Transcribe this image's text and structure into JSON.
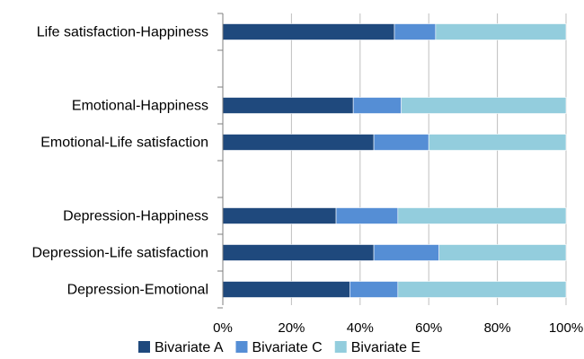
{
  "chart_data": {
    "type": "bar",
    "orientation": "horizontal",
    "stacked": "percent",
    "categories": [
      "Life satisfaction-Happiness",
      "",
      "Emotional-Happiness",
      "Emotional-Life satisfaction",
      "",
      "Depression-Happiness",
      "Depression-Life satisfaction",
      "Depression-Emotional"
    ],
    "series": [
      {
        "name": "Bivariate A",
        "values": [
          50,
          null,
          38,
          44,
          null,
          33,
          44,
          37
        ]
      },
      {
        "name": "Bivariate C",
        "values": [
          12,
          null,
          14,
          16,
          null,
          18,
          19,
          14
        ]
      },
      {
        "name": "Bivariate E",
        "values": [
          38,
          null,
          48,
          40,
          null,
          49,
          37,
          49
        ]
      }
    ],
    "xlim": [
      0,
      100
    ],
    "xticks": [
      "0%",
      "20%",
      "40%",
      "60%",
      "80%",
      "100%"
    ],
    "grid": true,
    "legend_position": "bottom",
    "colors": [
      "#1f497d",
      "#558ed5",
      "#93cddd"
    ]
  }
}
